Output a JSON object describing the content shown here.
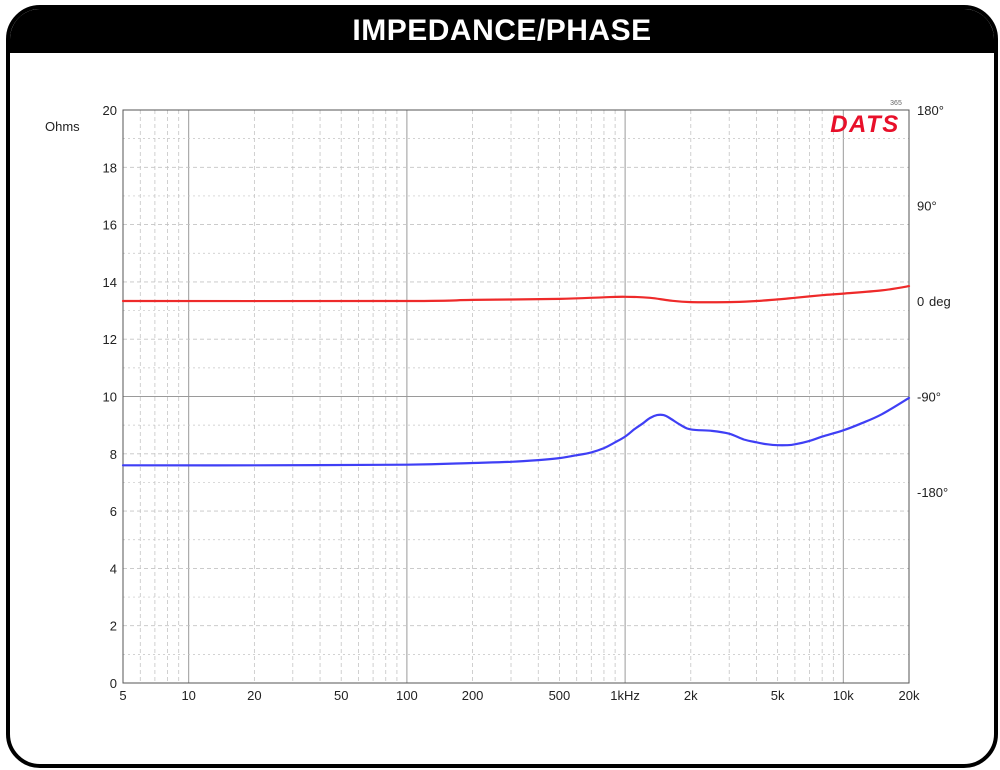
{
  "header": {
    "title": "IMPEDANCE/PHASE"
  },
  "brand": {
    "logo_text": "DATS",
    "logo_mark": "365",
    "color": "#e8102a"
  },
  "colors": {
    "impedance": "#3f3ff5",
    "phase": "#ee2a2a",
    "grid_major": "#9a9a9a",
    "grid_minor": "#c4c4c4"
  },
  "chart_data": {
    "type": "line",
    "x_scale": "log",
    "xlim": [
      5,
      20000
    ],
    "x_ticks": [
      {
        "value": 5,
        "label": "5"
      },
      {
        "value": 10,
        "label": "10"
      },
      {
        "value": 20,
        "label": "20"
      },
      {
        "value": 50,
        "label": "50"
      },
      {
        "value": 100,
        "label": "100"
      },
      {
        "value": 200,
        "label": "200"
      },
      {
        "value": 500,
        "label": "500"
      },
      {
        "value": 1000,
        "label": "1kHz"
      },
      {
        "value": 2000,
        "label": "2k"
      },
      {
        "value": 5000,
        "label": "5k"
      },
      {
        "value": 10000,
        "label": "10k"
      },
      {
        "value": 20000,
        "label": "20k"
      }
    ],
    "y_left": {
      "label": "Ohms",
      "label_color": "#3f3ff5",
      "lim": [
        0,
        20
      ],
      "ticks": [
        "0",
        "2",
        "4",
        "6",
        "8",
        "10",
        "12",
        "14",
        "16",
        "18",
        "20"
      ]
    },
    "y_right": {
      "lim": [
        -360,
        180
      ],
      "ticks": [
        {
          "value": 180,
          "label": "180°"
        },
        {
          "value": 90,
          "label": "90°"
        },
        {
          "value": 0,
          "label": "0"
        },
        {
          "value": -90,
          "label": "-90°"
        },
        {
          "value": -180,
          "label": "-180°"
        }
      ],
      "unit_label": "deg",
      "unit_color": "#ee2a2a"
    },
    "grid": true,
    "series": [
      {
        "axis": "left",
        "x": [
          5,
          20,
          100,
          200,
          300,
          400,
          500,
          600,
          700,
          800,
          900,
          1000,
          1100,
          1200,
          1300,
          1400,
          1500,
          1600,
          1800,
          2000,
          2500,
          3000,
          3500,
          4000,
          4500,
          5000,
          5500,
          6000,
          7000,
          8000,
          10000,
          12000,
          15000,
          20000
        ],
        "y": [
          7.6,
          7.6,
          7.62,
          7.68,
          7.72,
          7.78,
          7.85,
          7.95,
          8.05,
          8.2,
          8.4,
          8.6,
          8.85,
          9.05,
          9.25,
          9.35,
          9.35,
          9.25,
          9.0,
          8.85,
          8.8,
          8.7,
          8.5,
          8.4,
          8.33,
          8.3,
          8.3,
          8.33,
          8.45,
          8.6,
          8.82,
          9.05,
          9.38,
          9.95
        ]
      },
      {
        "axis": "right",
        "x": [
          5,
          100,
          200,
          500,
          800,
          1000,
          1300,
          1600,
          2000,
          3000,
          4000,
          5000,
          6000,
          8000,
          10000,
          15000,
          20000
        ],
        "y": [
          0,
          0,
          1,
          2,
          3.5,
          4,
          3,
          0.5,
          -1,
          -1,
          0,
          1.5,
          3,
          5.5,
          7,
          10,
          14
        ]
      }
    ]
  }
}
